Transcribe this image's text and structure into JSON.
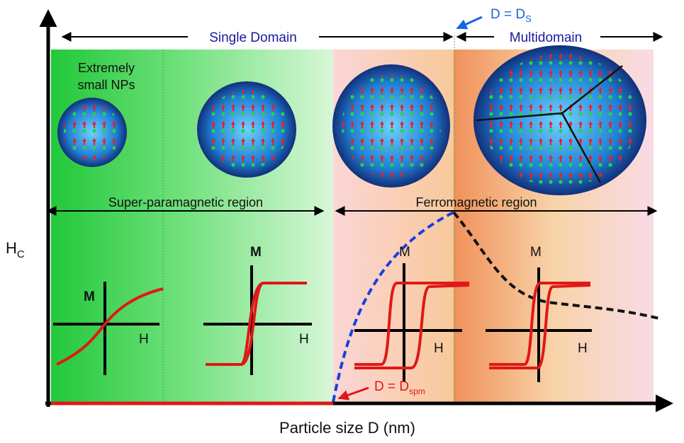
{
  "regions": {
    "single_domain": "Single Domain",
    "multidomain": "Multidomain",
    "superparamagnetic": "Super-paramagnetic region",
    "ferromagnetic": "Ferromagnetic region"
  },
  "labels": {
    "extremely_small": [
      "Extremely",
      "small NPs"
    ]
  },
  "markers": {
    "ds": {
      "text": "D = D",
      "sub": "S"
    },
    "dspm": {
      "text": "D = D",
      "sub": "spm"
    }
  },
  "axes": {
    "y": {
      "text": "H",
      "sub": "C"
    },
    "x": "Particle size D (nm)"
  },
  "loops": [
    {
      "m": "M",
      "h": "H"
    },
    {
      "m": "M",
      "h": "H"
    },
    {
      "m": "M",
      "h": "H"
    },
    {
      "m": "M",
      "h": "H"
    }
  ]
}
